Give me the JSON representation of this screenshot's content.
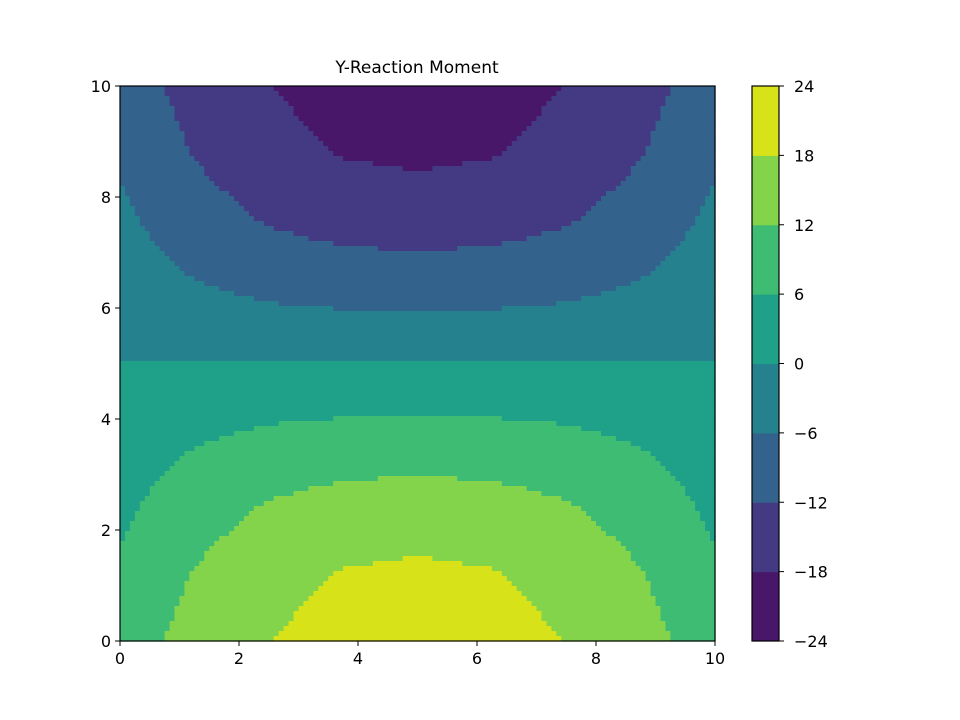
{
  "chart_data": {
    "type": "contourf",
    "title": "Y-Reaction Moment",
    "xlabel": "",
    "ylabel": "",
    "xlim": [
      0,
      10
    ],
    "ylim": [
      0,
      10
    ],
    "x_ticks": [
      0,
      2,
      4,
      6,
      8,
      10
    ],
    "y_ticks": [
      0,
      2,
      4,
      6,
      8,
      10
    ],
    "colorbar": {
      "levels": [
        -24,
        -18,
        -12,
        -6,
        0,
        6,
        12,
        18,
        24
      ],
      "tick_labels": [
        "−24",
        "−18",
        "−12",
        "−6",
        "0",
        "6",
        "12",
        "18",
        "24"
      ],
      "colors": [
        "#481769",
        "#443983",
        "#33638d",
        "#26818e",
        "#1fa088",
        "#3fbc73",
        "#84d44b",
        "#d8e219"
      ]
    },
    "field": {
      "description_formula": "value decreases with y; magnitude largest near x=5",
      "grid_x": [
        0,
        1.25,
        2.5,
        3.75,
        5,
        6.25,
        7.5,
        8.75,
        10
      ],
      "grid_y": [
        0,
        1.25,
        2.5,
        3.75,
        5,
        6.25,
        7.5,
        8.75,
        10
      ],
      "z_rows": [
        [
          9.2,
          14.1,
          17.8,
          20.8,
          21.9,
          20.8,
          17.8,
          14.1,
          9.2
        ],
        [
          6.9,
          12.2,
          15.8,
          18.2,
          19.0,
          18.2,
          15.8,
          12.2,
          6.9
        ],
        [
          4.6,
          9.3,
          12.2,
          13.9,
          14.5,
          13.9,
          12.2,
          9.3,
          4.6
        ],
        [
          2.3,
          5.1,
          6.8,
          7.7,
          8.0,
          7.7,
          6.8,
          5.1,
          2.3
        ],
        [
          0,
          0,
          0,
          0,
          0,
          0,
          0,
          0,
          0
        ],
        [
          -2.3,
          -5.1,
          -6.8,
          -7.7,
          -8.0,
          -7.7,
          -6.8,
          -5.1,
          -2.3
        ],
        [
          -4.6,
          -9.3,
          -12.2,
          -13.9,
          -14.5,
          -13.9,
          -12.2,
          -9.3,
          -4.6
        ],
        [
          -6.9,
          -12.2,
          -15.8,
          -18.2,
          -19.0,
          -18.2,
          -15.8,
          -12.2,
          -6.9
        ],
        [
          -9.2,
          -14.1,
          -17.8,
          -20.8,
          -21.9,
          -20.8,
          -17.8,
          -14.1,
          -9.2
        ]
      ]
    }
  }
}
